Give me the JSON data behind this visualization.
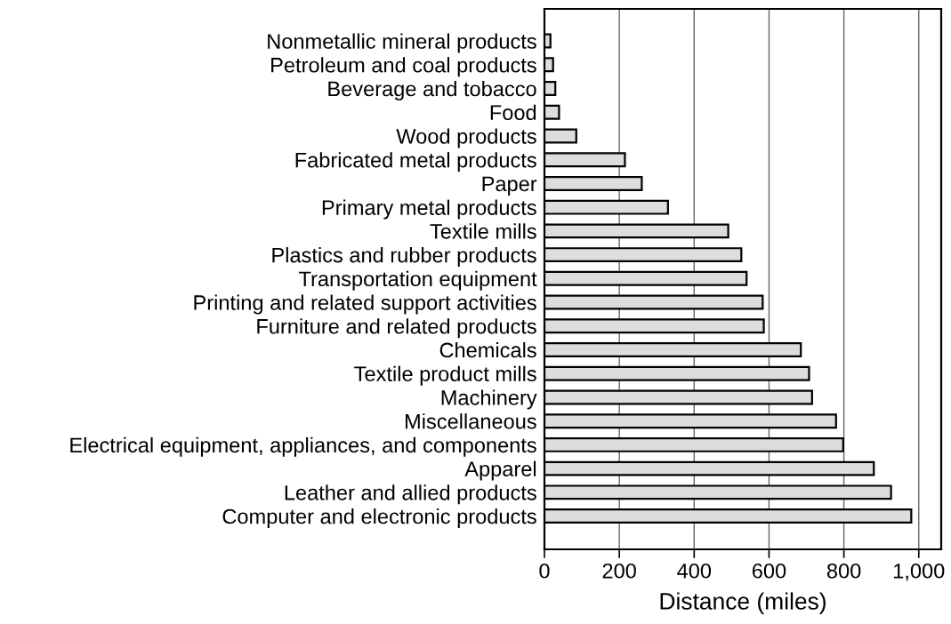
{
  "chart_data": {
    "type": "bar",
    "orientation": "horizontal",
    "xlabel": "Distance (miles)",
    "categories": [
      "Nonmetallic mineral products",
      "Petroleum and coal products",
      "Beverage and tobacco",
      "Food",
      "Wood products",
      "Fabricated metal products",
      "Paper",
      "Primary metal products",
      "Textile mills",
      "Plastics and rubber products",
      "Transportation equipment",
      "Printing and related support activities",
      "Furniture and related products",
      "Chemicals",
      "Textile product mills",
      "Machinery",
      "Miscellaneous",
      "Electrical equipment, appliances, and components",
      "Apparel",
      "Leather and allied products",
      "Computer and electronic products"
    ],
    "values": [
      16,
      23,
      29,
      39,
      85,
      215,
      260,
      330,
      491,
      526,
      540,
      583,
      586,
      685,
      707,
      715,
      779,
      798,
      880,
      926,
      980
    ],
    "color": "#dddddd",
    "xlim": [
      0,
      1060
    ],
    "xticks": [
      0,
      200,
      400,
      600,
      800,
      {
        "value": 1000,
        "label": "1,000"
      }
    ],
    "grid": "x"
  }
}
